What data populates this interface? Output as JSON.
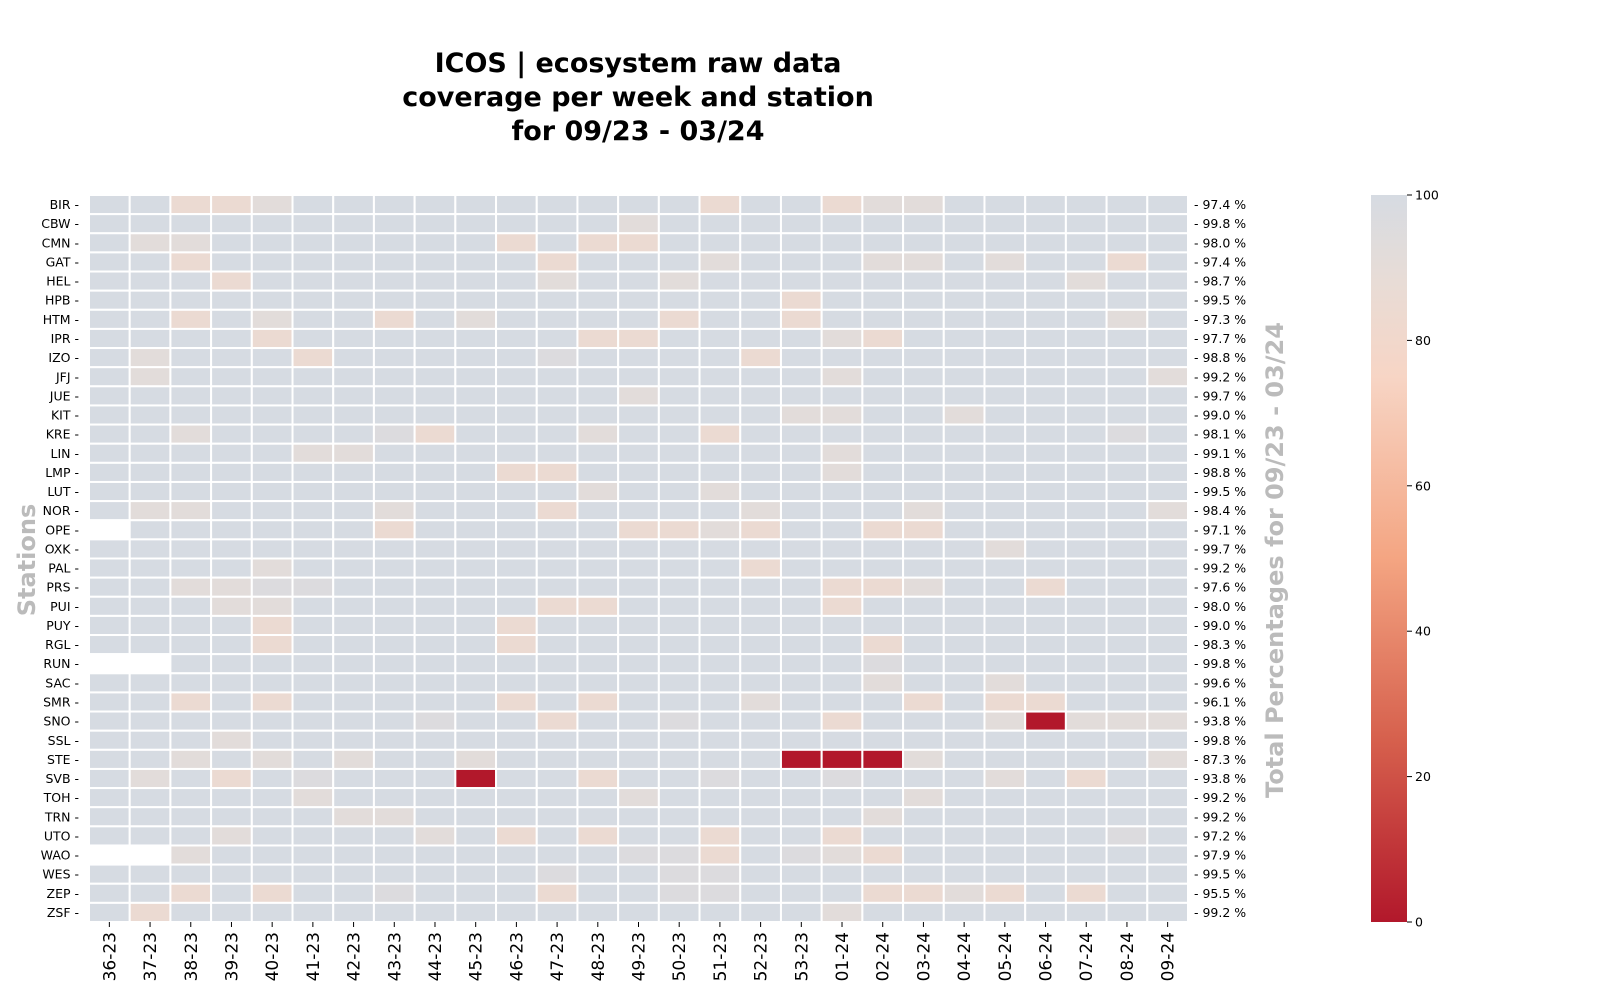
{
  "chart_data": {
    "type": "heatmap",
    "title_lines": [
      "ICOS | ecosystem raw data",
      "coverage per week and station",
      "for 09/23 - 03/24"
    ],
    "ylabel": "Stations",
    "right_label": "Total Percentages for 09/23 - 03/24",
    "colorbar": {
      "min": 0,
      "max": 100,
      "ticks": [
        0,
        20,
        40,
        60,
        80,
        100
      ]
    },
    "weeks": [
      "36-23",
      "37-23",
      "38-23",
      "39-23",
      "40-23",
      "41-23",
      "42-23",
      "43-23",
      "44-23",
      "45-23",
      "46-23",
      "47-23",
      "48-23",
      "49-23",
      "50-23",
      "51-23",
      "52-23",
      "53-23",
      "01-24",
      "02-24",
      "03-24",
      "04-24",
      "05-24",
      "06-24",
      "07-24",
      "08-24",
      "09-24"
    ],
    "stations": [
      "BIR",
      "CBW",
      "CMN",
      "GAT",
      "HEL",
      "HPB",
      "HTM",
      "IPR",
      "IZO",
      "JFJ",
      "JUE",
      "KIT",
      "KRE",
      "LIN",
      "LMP",
      "LUT",
      "NOR",
      "OPE",
      "OXK",
      "PAL",
      "PRS",
      "PUI",
      "PUY",
      "RGL",
      "RUN",
      "SAC",
      "SMR",
      "SNO",
      "SSL",
      "STE",
      "SVB",
      "TOH",
      "TRN",
      "UTO",
      "WAO",
      "WES",
      "ZEP",
      "ZSF"
    ],
    "totals": [
      "97.4 %",
      "99.8 %",
      "98.0 %",
      "97.4 %",
      "98.7 %",
      "99.5 %",
      "97.3 %",
      "97.7 %",
      "98.8 %",
      "99.2 %",
      "99.7 %",
      "99.0 %",
      "98.1 %",
      "99.1 %",
      "98.8 %",
      "99.5 %",
      "98.4 %",
      "97.1 %",
      "99.7 %",
      "99.2 %",
      "97.6 %",
      "98.0 %",
      "99.0 %",
      "98.3 %",
      "99.8 %",
      "99.6 %",
      "96.1 %",
      "93.8 %",
      "99.8 %",
      "87.3 %",
      "93.8 %",
      "99.2 %",
      "99.2 %",
      "97.2 %",
      "97.9 %",
      "99.5 %",
      "95.5 %",
      "99.2 %"
    ],
    "exceptions": {
      "BIR": {
        "2": 85,
        "3": 85,
        "4": 92,
        "15": 85,
        "18": 85,
        "19": 92,
        "20": 92
      },
      "CBW": {
        "13": 92
      },
      "CMN": {
        "1": 92,
        "2": 92,
        "10": 85,
        "12": 85,
        "13": 85
      },
      "GAT": {
        "2": 85,
        "11": 85,
        "15": 92,
        "19": 92,
        "20": 92,
        "22": 92,
        "25": 85
      },
      "HEL": {
        "3": 85,
        "11": 92,
        "14": 92,
        "24": 92
      },
      "HPB": {
        "17": 85
      },
      "HTM": {
        "2": 85,
        "4": 92,
        "7": 85,
        "9": 92,
        "14": 85,
        "17": 85,
        "25": 92
      },
      "IPR": {
        "4": 85,
        "12": 85,
        "13": 85,
        "18": 92,
        "19": 85
      },
      "IZO": {
        "1": 92,
        "5": 85,
        "11": 96,
        "16": 85
      },
      "JFJ": {
        "1": 92,
        "18": 92,
        "26": 92
      },
      "JUE": {
        "13": 92
      },
      "KIT": {
        "17": 92,
        "18": 92,
        "21": 92
      },
      "KRE": {
        "2": 92,
        "7": 96,
        "8": 85,
        "12": 92,
        "15": 85,
        "25": 96
      },
      "LIN": {
        "5": 92,
        "6": 92,
        "18": 92
      },
      "LMP": {
        "10": 85,
        "11": 85,
        "18": 92
      },
      "LUT": {
        "12": 92,
        "15": 92
      },
      "NOR": {
        "1": 92,
        "2": 92,
        "7": 92,
        "11": 85,
        "16": 92,
        "20": 92,
        "26": 92
      },
      "OPE": {
        "0": null,
        "7": 85,
        "13": 85,
        "14": 85,
        "15": 92,
        "16": 85,
        "19": 85,
        "20": 85
      },
      "OXK": {
        "22": 92
      },
      "PAL": {
        "4": 92,
        "16": 85
      },
      "PRS": {
        "2": 92,
        "3": 92,
        "4": 96,
        "5": 96,
        "18": 85,
        "19": 85,
        "20": 92,
        "23": 85
      },
      "PUI": {
        "3": 92,
        "4": 92,
        "11": 85,
        "12": 85,
        "18": 85
      },
      "PUY": {
        "4": 85,
        "10": 85
      },
      "RGL": {
        "4": 85,
        "10": 85,
        "19": 85
      },
      "RUN": {
        "0": null,
        "1": null,
        "19": 96
      },
      "SAC": {
        "19": 92,
        "22": 92
      },
      "SMR": {
        "2": 85,
        "4": 85,
        "10": 85,
        "12": 85,
        "16": 92,
        "20": 85,
        "22": 85,
        "23": 85
      },
      "SNO": {
        "8": 96,
        "11": 85,
        "14": 96,
        "18": 85,
        "22": 92,
        "23": 0,
        "24": 92,
        "25": 92,
        "26": 92
      },
      "SSL": {
        "3": 92
      },
      "STE": {
        "2": 92,
        "4": 92,
        "6": 92,
        "9": 92,
        "17": 0,
        "18": 0,
        "19": 0,
        "20": 92,
        "26": 92
      },
      "SVB": {
        "1": 92,
        "3": 85,
        "5": 96,
        "9": 0,
        "12": 85,
        "15": 96,
        "18": 96,
        "22": 92,
        "24": 85
      },
      "TOH": {
        "5": 92,
        "13": 92,
        "20": 92
      },
      "TRN": {
        "6": 92,
        "7": 92,
        "19": 92
      },
      "UTO": {
        "3": 92,
        "8": 92,
        "10": 85,
        "12": 85,
        "15": 85,
        "18": 85,
        "25": 96
      },
      "WAO": {
        "0": null,
        "1": null,
        "2": 92,
        "13": 96,
        "14": 96,
        "15": 85,
        "17": 96,
        "18": 92,
        "19": 85
      },
      "WES": {
        "11": 96,
        "14": 96,
        "15": 96
      },
      "ZEP": {
        "2": 85,
        "4": 85,
        "7": 96,
        "11": 85,
        "14": 96,
        "15": 96,
        "19": 85,
        "20": 85,
        "21": 92,
        "22": 85,
        "24": 85
      },
      "ZSF": {
        "1": 85,
        "18": 92
      }
    }
  }
}
